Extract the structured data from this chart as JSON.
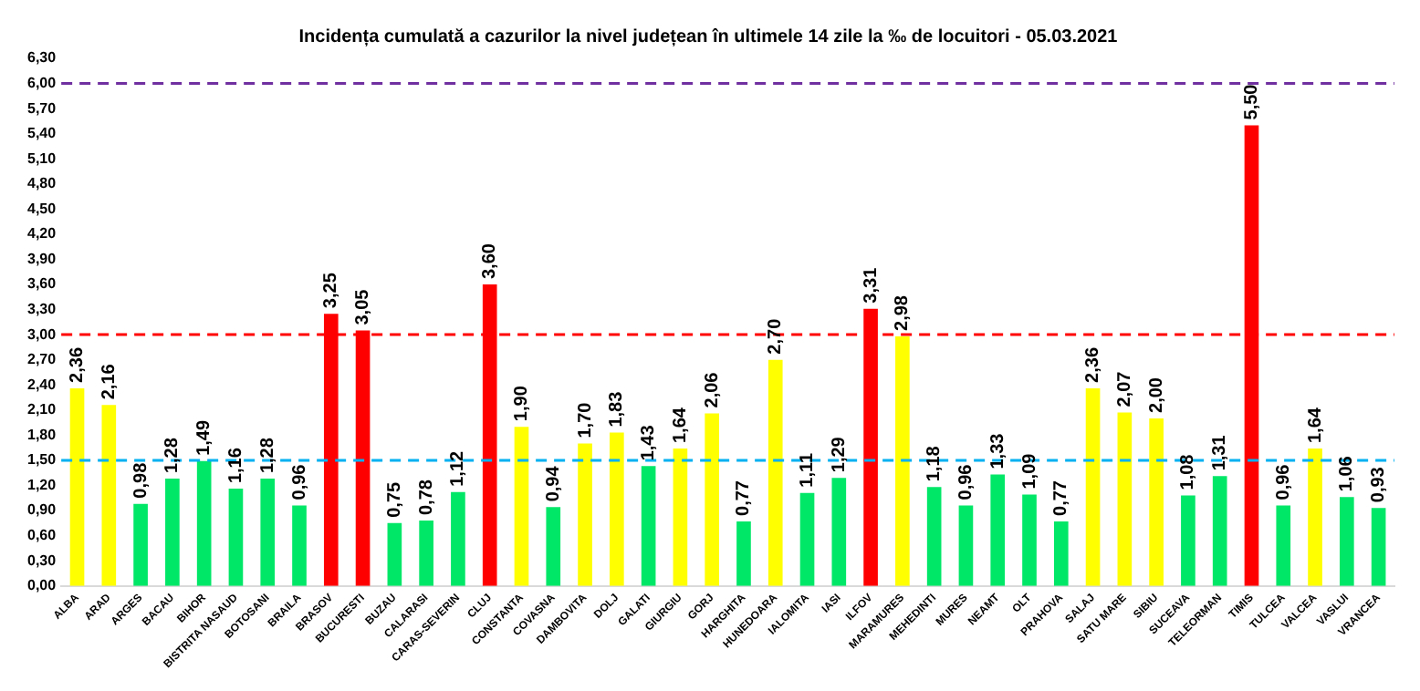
{
  "chart_data": {
    "type": "bar",
    "title": "Incidența cumulată a cazurilor la nivel județean în ultimele 14 zile la ‰ de locuitori - 05.03.2021",
    "categories": [
      "ALBA",
      "ARAD",
      "ARGES",
      "BACAU",
      "BIHOR",
      "BISTRITA NASAUD",
      "BOTOSANI",
      "BRAILA",
      "BRASOV",
      "BUCURESTI",
      "BUZAU",
      "CALARASI",
      "CARAS-SEVERIN",
      "CLUJ",
      "CONSTANTA",
      "COVASNA",
      "DAMBOVITA",
      "DOLJ",
      "GALATI",
      "GIURGIU",
      "GORJ",
      "HARGHITA",
      "HUNEDOARA",
      "IALOMITA",
      "IASI",
      "ILFOV",
      "MARAMURES",
      "MEHEDINTI",
      "MURES",
      "NEAMT",
      "OLT",
      "PRAHOVA",
      "SALAJ",
      "SATU MARE",
      "SIBIU",
      "SUCEAVA",
      "TELEORMAN",
      "TIMIS",
      "TULCEA",
      "VALCEA",
      "VASLUI",
      "VRANCEA"
    ],
    "values": [
      2.36,
      2.16,
      0.98,
      1.28,
      1.49,
      1.16,
      1.28,
      0.96,
      3.25,
      3.05,
      0.75,
      0.78,
      1.12,
      3.6,
      1.9,
      0.94,
      1.7,
      1.83,
      1.43,
      1.64,
      2.06,
      0.77,
      2.7,
      1.11,
      1.29,
      3.31,
      2.98,
      1.18,
      0.96,
      1.33,
      1.09,
      0.77,
      2.36,
      2.07,
      2.0,
      1.08,
      1.31,
      5.5,
      0.96,
      1.64,
      1.06,
      0.93
    ],
    "value_labels": [
      "2,36",
      "2,16",
      "0,98",
      "1,28",
      "1,49",
      "1,16",
      "1,28",
      "0,96",
      "3,25",
      "3,05",
      "0,75",
      "0,78",
      "1,12",
      "3,60",
      "1,90",
      "0,94",
      "1,70",
      "1,83",
      "1,43",
      "1,64",
      "2,06",
      "0,77",
      "2,70",
      "1,11",
      "1,29",
      "3,31",
      "2,98",
      "1,18",
      "0,96",
      "1,33",
      "1,09",
      "0,77",
      "2,36",
      "2,07",
      "2,00",
      "1,08",
      "1,31",
      "5,50",
      "0,96",
      "1,64",
      "1,06",
      "0,93"
    ],
    "colors": [
      "#ffff00",
      "#ffff00",
      "#00e667",
      "#00e667",
      "#00e667",
      "#00e667",
      "#00e667",
      "#00e667",
      "#ff0000",
      "#ff0000",
      "#00e667",
      "#00e667",
      "#00e667",
      "#ff0000",
      "#ffff00",
      "#00e667",
      "#ffff00",
      "#ffff00",
      "#00e667",
      "#ffff00",
      "#ffff00",
      "#00e667",
      "#ffff00",
      "#00e667",
      "#00e667",
      "#ff0000",
      "#ffff00",
      "#00e667",
      "#00e667",
      "#00e667",
      "#00e667",
      "#00e667",
      "#ffff00",
      "#ffff00",
      "#ffff00",
      "#00e667",
      "#00e667",
      "#ff0000",
      "#00e667",
      "#ffff00",
      "#00e667",
      "#00e667"
    ],
    "ylim": [
      0,
      6.3
    ],
    "yticks": [
      {
        "value": 0,
        "label": "0,00"
      },
      {
        "value": 0.3,
        "label": "0,30"
      },
      {
        "value": 0.6,
        "label": "0,60"
      },
      {
        "value": 0.9,
        "label": "0,90"
      },
      {
        "value": 1.2,
        "label": "1,20"
      },
      {
        "value": 1.5,
        "label": "1,50"
      },
      {
        "value": 1.8,
        "label": "1,80"
      },
      {
        "value": 2.1,
        "label": "2,10"
      },
      {
        "value": 2.4,
        "label": "2,40"
      },
      {
        "value": 2.7,
        "label": "2,70"
      },
      {
        "value": 3.0,
        "label": "3,00"
      },
      {
        "value": 3.3,
        "label": "3,30"
      },
      {
        "value": 3.6,
        "label": "3,60"
      },
      {
        "value": 3.9,
        "label": "3,90"
      },
      {
        "value": 4.2,
        "label": "4,20"
      },
      {
        "value": 4.5,
        "label": "4,50"
      },
      {
        "value": 4.8,
        "label": "4,80"
      },
      {
        "value": 5.1,
        "label": "5,10"
      },
      {
        "value": 5.4,
        "label": "5,40"
      },
      {
        "value": 5.7,
        "label": "5,70"
      },
      {
        "value": 6.0,
        "label": "6,00"
      },
      {
        "value": 6.3,
        "label": "6,30"
      }
    ],
    "ref_lines": [
      {
        "axis": "y",
        "value": 6,
        "color": "#7030a0",
        "line_style": "dashed"
      },
      {
        "axis": "y",
        "value": 3,
        "color": "#ff0000",
        "line_style": "dashed"
      },
      {
        "axis": "y",
        "value": 1.5,
        "color": "#00b0f0",
        "line_style": "dashed"
      }
    ],
    "grid": false,
    "legend": false
  }
}
